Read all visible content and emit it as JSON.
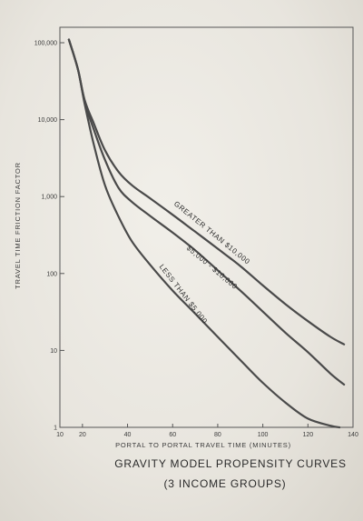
{
  "chart_data": {
    "type": "line",
    "title": "GRAVITY MODEL PROPENSITY CURVES",
    "subtitle": "(3 INCOME GROUPS)",
    "xlabel": "PORTAL TO PORTAL TRAVEL TIME (MINUTES)",
    "ylabel": "TRAVEL TIME FRICTION FACTOR",
    "xlim": [
      10,
      140
    ],
    "ylim": [
      1,
      150000
    ],
    "y_scale": "log",
    "x_ticks": [
      10,
      20,
      40,
      60,
      80,
      100,
      120,
      140
    ],
    "y_ticks": [
      1,
      10,
      100,
      1000,
      10000,
      100000
    ],
    "x_tick_labels": [
      "10",
      "20",
      "40",
      "60",
      "80",
      "100",
      "120",
      "140"
    ],
    "y_tick_labels": [
      "1",
      "10",
      "100",
      "1,000",
      "10,000",
      "100,000"
    ],
    "grid": false,
    "series": [
      {
        "name": "GREATER THAN $10,000",
        "x": [
          14,
          18,
          21,
          25,
          30,
          36,
          42,
          50,
          60,
          70,
          80,
          90,
          100,
          110,
          120,
          130,
          136
        ],
        "y": [
          110000,
          45000,
          18000,
          9000,
          4000,
          2100,
          1400,
          950,
          580,
          350,
          210,
          125,
          70,
          40,
          24,
          15,
          12
        ]
      },
      {
        "name": "$5,000 - $10,000",
        "x": [
          14,
          18,
          21,
          25,
          30,
          36,
          42,
          50,
          60,
          70,
          80,
          90,
          100,
          110,
          120,
          130,
          136
        ],
        "y": [
          110000,
          45000,
          17000,
          7500,
          3000,
          1300,
          850,
          560,
          340,
          200,
          110,
          60,
          32,
          17,
          9.5,
          5,
          3.6
        ]
      },
      {
        "name": "LESS THAN $5,000",
        "x": [
          14,
          18,
          21,
          25,
          30,
          36,
          42,
          50,
          60,
          70,
          80,
          90,
          100,
          110,
          120,
          130,
          134
        ],
        "y": [
          110000,
          45000,
          16000,
          4800,
          1400,
          550,
          260,
          130,
          60,
          30,
          15,
          7.5,
          3.8,
          2.1,
          1.3,
          1.05,
          1.0
        ]
      }
    ]
  }
}
